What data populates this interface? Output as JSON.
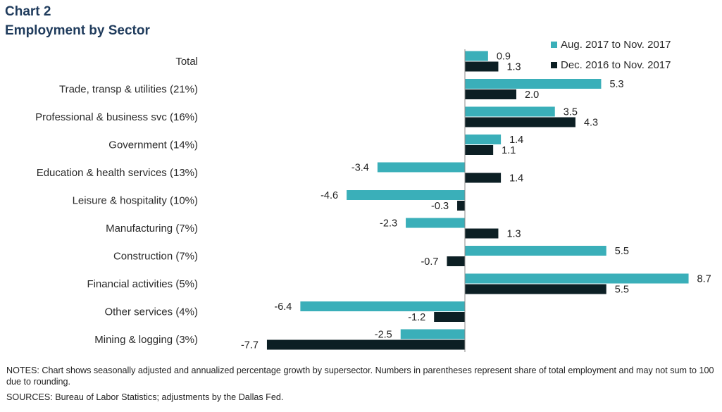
{
  "header": {
    "chart_number": "Chart 2",
    "title": "Employment  by Sector"
  },
  "colors": {
    "series1": "#3aafb9",
    "series2": "#0c1f24",
    "title": "#1f3b5c",
    "axis": "#888888"
  },
  "chart_data": {
    "type": "bar",
    "orientation": "horizontal",
    "title": "Employment  by Sector",
    "categories": [
      "Total",
      "Trade, transp & utilities (21%)",
      "Professional & business svc (16%)",
      "Government (14%)",
      "Education & health services (13%)",
      "Leisure & hospitality (10%)",
      "Manufacturing (7%)",
      "Construction (7%)",
      "Financial activities (5%)",
      "Other services (4%)",
      "Mining & logging (3%)"
    ],
    "series": [
      {
        "name": "Aug. 2017 to Nov. 2017",
        "values": [
          0.9,
          5.3,
          3.5,
          1.4,
          -3.4,
          -4.6,
          -2.3,
          5.5,
          8.7,
          -6.4,
          -2.5
        ],
        "labels": [
          "0.9",
          "5.3",
          "3.5",
          "1.4",
          "-3.4",
          "-4.6",
          "-2.3",
          "5.5",
          "8.7",
          "-6.4",
          "-2.5"
        ]
      },
      {
        "name": "Dec. 2016 to Nov. 2017",
        "values": [
          1.3,
          2.0,
          4.3,
          1.1,
          1.4,
          -0.3,
          1.3,
          -0.7,
          5.5,
          -1.2,
          -7.7
        ],
        "labels": [
          "1.3",
          "2.0",
          "4.3",
          "1.1",
          "1.4",
          "-0.3",
          "1.3",
          "-0.7",
          "5.5",
          "-1.2",
          "-7.7"
        ]
      }
    ],
    "xlim": [
      -7.7,
      8.7
    ],
    "legend_position": "top-right",
    "grid": false
  },
  "notes": "NOTES:  Chart shows seasonally adjusted and annualized percentage growth by supersector. Numbers  in parentheses represent share of total employment and may not sum to 100 due to rounding.",
  "sources": "SOURCES:  Bureau of Labor Statistics; adjustments by the Dallas Fed."
}
